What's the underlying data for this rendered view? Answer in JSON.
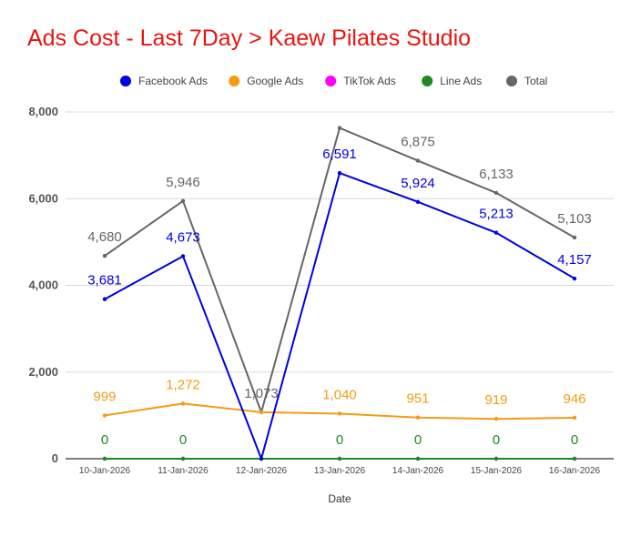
{
  "chart_data": {
    "type": "line",
    "title": "Ads Cost - Last 7Day > Kaew Pilates Studio",
    "xlabel": "Date",
    "ylabel": "",
    "categories": [
      "10-Jan-2026",
      "11-Jan-2026",
      "12-Jan-2026",
      "13-Jan-2026",
      "14-Jan-2026",
      "15-Jan-2026",
      "16-Jan-2026"
    ],
    "ylim": [
      0,
      8000
    ],
    "yticks": [
      0,
      2000,
      4000,
      6000,
      8000
    ],
    "ytick_labels": [
      "0",
      "2,000",
      "4,000",
      "6,000",
      "8,000"
    ],
    "grid": true,
    "legend_position": "top",
    "series": [
      {
        "name": "Facebook Ads",
        "color": "#0000e0",
        "values": [
          3681,
          4673,
          0,
          6591,
          5924,
          5213,
          4157
        ],
        "labels": [
          "3,681",
          "4,673",
          "",
          "6,591",
          "5,924",
          "5,213",
          "4,157"
        ]
      },
      {
        "name": "Google Ads",
        "color": "#f39c12",
        "values": [
          999,
          1272,
          1073,
          1040,
          951,
          919,
          946
        ],
        "labels": [
          "999",
          "1,272",
          "",
          "1,040",
          "951",
          "919",
          "946"
        ]
      },
      {
        "name": "TikTok Ads",
        "color": "#ff00ff",
        "values": [
          0,
          0,
          0,
          0,
          0,
          0,
          0
        ],
        "labels": [
          "",
          "",
          "",
          "",
          "",
          "",
          ""
        ]
      },
      {
        "name": "Line Ads",
        "color": "#1e8a1e",
        "values": [
          0,
          0,
          0,
          0,
          0,
          0,
          0
        ],
        "labels": [
          "0",
          "0",
          "",
          "0",
          "0",
          "0",
          "0"
        ]
      },
      {
        "name": "Total",
        "color": "#666666",
        "values": [
          4680,
          5946,
          1073,
          7631,
          6875,
          6133,
          5103
        ],
        "labels": [
          "4,680",
          "5,946",
          "1,073",
          "",
          "6,875",
          "6,133",
          "5,103"
        ]
      }
    ]
  }
}
